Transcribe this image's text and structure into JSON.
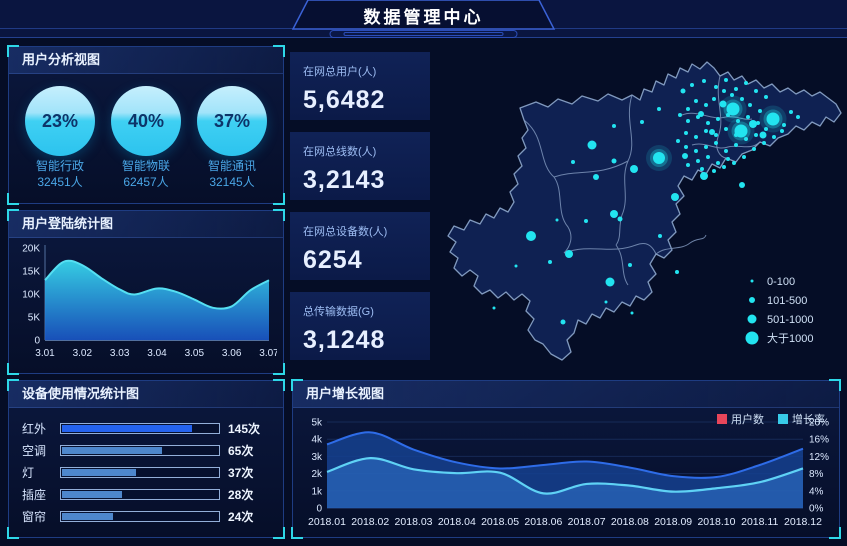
{
  "header": {
    "title": "数据管理中心"
  },
  "panels": {
    "user_analysis": {
      "title": "用户分析视图",
      "gauges": [
        {
          "percent": "23%",
          "label": "智能行政",
          "count": "32451人"
        },
        {
          "percent": "40%",
          "label": "智能物联",
          "count": "62457人"
        },
        {
          "percent": "37%",
          "label": "智能通讯",
          "count": "32145人"
        }
      ]
    },
    "login_stats": {
      "title": "用户登陆统计图"
    },
    "device_usage": {
      "title": "设备使用情况统计图"
    },
    "user_growth": {
      "title": "用户增长视图",
      "legend": [
        {
          "label": "用户数",
          "color": "#e8465a"
        },
        {
          "label": "增长率",
          "color": "#38cbe8"
        }
      ]
    }
  },
  "kpis": [
    {
      "label": "在网总用户(人)",
      "value": "5,6482"
    },
    {
      "label": "在网总线数(人)",
      "value": "3,2143"
    },
    {
      "label": "在网总设备数(人)",
      "value": "6254"
    },
    {
      "label": "总传输数据(G)",
      "value": "3,1248"
    }
  ],
  "map": {
    "dot_color": "#22e4f0",
    "legend": [
      {
        "label": "0-100",
        "r": 1.5
      },
      {
        "label": "101-500",
        "r": 3
      },
      {
        "label": "501-1000",
        "r": 4.5
      },
      {
        "label": "大于1000",
        "r": 6.5
      }
    ],
    "points": [
      [
        262,
        40,
        2
      ],
      [
        274,
        36,
        2
      ],
      [
        286,
        42,
        2
      ],
      [
        296,
        35,
        2
      ],
      [
        306,
        44,
        2
      ],
      [
        316,
        38,
        2
      ],
      [
        326,
        46,
        2
      ],
      [
        336,
        52,
        2
      ],
      [
        330,
        66,
        2
      ],
      [
        320,
        60,
        2
      ],
      [
        312,
        54,
        2
      ],
      [
        302,
        50,
        2
      ],
      [
        294,
        46,
        2
      ],
      [
        284,
        54,
        2
      ],
      [
        276,
        60,
        2
      ],
      [
        266,
        56,
        2
      ],
      [
        258,
        64,
        2
      ],
      [
        250,
        70,
        2
      ],
      [
        258,
        76,
        2
      ],
      [
        268,
        72,
        2
      ],
      [
        278,
        78,
        2
      ],
      [
        288,
        74,
        2
      ],
      [
        298,
        70,
        2
      ],
      [
        308,
        76,
        2
      ],
      [
        318,
        72,
        2
      ],
      [
        328,
        78,
        2
      ],
      [
        336,
        84,
        2
      ],
      [
        326,
        90,
        2
      ],
      [
        316,
        94,
        2
      ],
      [
        306,
        90,
        2
      ],
      [
        296,
        84,
        2
      ],
      [
        286,
        90,
        2
      ],
      [
        276,
        86,
        2
      ],
      [
        266,
        92,
        2
      ],
      [
        256,
        88,
        2
      ],
      [
        248,
        96,
        2
      ],
      [
        256,
        102,
        2
      ],
      [
        266,
        106,
        2
      ],
      [
        276,
        102,
        2
      ],
      [
        286,
        98,
        2
      ],
      [
        296,
        106,
        2
      ],
      [
        306,
        100,
        2
      ],
      [
        298,
        114,
        2
      ],
      [
        288,
        118,
        2
      ],
      [
        278,
        112,
        2
      ],
      [
        268,
        116,
        2
      ],
      [
        258,
        120,
        2
      ],
      [
        272,
        124,
        2
      ],
      [
        284,
        126,
        2
      ],
      [
        294,
        122,
        2
      ],
      [
        304,
        118,
        2
      ],
      [
        314,
        112,
        2
      ],
      [
        324,
        104,
        2
      ],
      [
        334,
        98,
        2
      ],
      [
        344,
        92,
        2
      ],
      [
        352,
        86,
        2
      ],
      [
        361,
        67,
        2
      ],
      [
        368,
        72,
        2
      ],
      [
        354,
        80,
        2
      ],
      [
        293,
        59,
        3.5
      ],
      [
        323,
        79,
        4
      ],
      [
        333,
        90,
        3.5
      ],
      [
        271,
        69,
        3
      ],
      [
        282,
        87,
        3
      ],
      [
        253,
        46,
        2.5
      ],
      [
        255,
        111,
        3
      ],
      [
        312,
        140,
        3
      ],
      [
        184,
        116,
        2.5
      ],
      [
        166,
        132,
        3
      ],
      [
        204,
        124,
        4
      ],
      [
        184,
        169,
        4
      ],
      [
        245,
        152,
        4
      ],
      [
        274,
        131,
        4
      ],
      [
        162,
        100,
        4.5
      ],
      [
        101,
        191,
        5
      ],
      [
        139,
        209,
        4
      ],
      [
        180,
        237,
        4.5
      ],
      [
        230,
        191,
        2
      ],
      [
        200,
        220,
        2
      ],
      [
        176,
        257,
        1.5
      ],
      [
        133,
        277,
        2.5
      ],
      [
        64,
        263,
        1.5
      ],
      [
        120,
        217,
        2
      ],
      [
        86,
        221,
        1.5
      ],
      [
        202,
        268,
        1.5
      ],
      [
        127,
        175,
        1.5
      ],
      [
        156,
        176,
        2
      ],
      [
        190,
        174,
        2.5
      ],
      [
        143,
        117,
        2
      ],
      [
        184,
        81,
        2
      ],
      [
        212,
        77,
        2
      ],
      [
        229,
        64,
        2
      ],
      [
        247,
        227,
        2
      ],
      [
        303,
        64,
        6.5
      ],
      [
        343,
        74,
        6.5
      ],
      [
        311,
        86,
        6.5
      ],
      [
        229,
        113,
        6
      ]
    ]
  },
  "chart_data": [
    {
      "id": "login",
      "type": "area",
      "title": "用户登陆统计图",
      "xlabel": "",
      "ylabel": "",
      "ylim": [
        0,
        20000
      ],
      "yticks": [
        "0",
        "5K",
        "10K",
        "15K",
        "20K"
      ],
      "xticks": [
        "3.01",
        "3.02",
        "3.03",
        "3.04",
        "3.05",
        "3.06",
        "3.07"
      ],
      "points_k": [
        [
          3.01,
          13.0
        ],
        [
          3.014,
          16.5
        ],
        [
          3.017,
          17.2
        ],
        [
          3.021,
          15.8
        ],
        [
          3.025,
          13.5
        ],
        [
          3.03,
          11.0
        ],
        [
          3.034,
          9.9
        ],
        [
          3.04,
          11.2
        ],
        [
          3.045,
          10.5
        ],
        [
          3.05,
          8.8
        ],
        [
          3.055,
          7.0
        ],
        [
          3.06,
          7.3
        ],
        [
          3.065,
          10.8
        ],
        [
          3.07,
          13.0
        ]
      ],
      "line_color": "#55dff2",
      "fill_top": "#38d7ec",
      "fill_bottom": "#1a57c8"
    },
    {
      "id": "device",
      "type": "bar",
      "title": "设备使用情况统计图",
      "orientation": "horizontal",
      "categories": [
        "红外",
        "空调",
        "灯",
        "插座",
        "窗帘"
      ],
      "values": [
        145,
        65,
        37,
        28,
        24
      ],
      "unit": "次",
      "value_labels": [
        "145次",
        "65次",
        "37次",
        "28次",
        "24次"
      ],
      "fill_pct": [
        82,
        63,
        47,
        38,
        32
      ],
      "fill_colors": [
        "#2563ee",
        "#4e87cc",
        "#4e87cc",
        "#4e87cc",
        "#4e87cc"
      ]
    },
    {
      "id": "growth",
      "type": "area",
      "title": "用户增长视图",
      "categories": [
        "2018.01",
        "2018.02",
        "2018.03",
        "2018.04",
        "2018.05",
        "2018.06",
        "2018.07",
        "2018.08",
        "2018.09",
        "2018.10",
        "2018.11",
        "2018.12"
      ],
      "left_ticks": [
        "0",
        "1k",
        "2k",
        "3k",
        "4k",
        "5k"
      ],
      "right_ticks": [
        "0%",
        "4%",
        "8%",
        "12%",
        "16%",
        "20%"
      ],
      "left_lim": [
        0,
        5000
      ],
      "right_lim": [
        0,
        20
      ],
      "legend_position": "top-right",
      "grid": true,
      "series": [
        {
          "name": "用户数",
          "axis": "left",
          "values_k": [
            3.7,
            4.4,
            3.4,
            2.65,
            2.3,
            2.5,
            2.7,
            2.35,
            1.85,
            1.8,
            2.5,
            3.45
          ],
          "line_color": "#2e6ce8",
          "fill_color": "#15418f"
        },
        {
          "name": "增长率",
          "axis": "right",
          "values_pct": [
            8.4,
            11.6,
            9.0,
            8.1,
            8.2,
            3.4,
            5.6,
            5.2,
            3.8,
            4.6,
            6.0,
            9.2
          ],
          "line_color": "#5fd2f5",
          "fill_color": "#2e72c8"
        }
      ]
    }
  ]
}
